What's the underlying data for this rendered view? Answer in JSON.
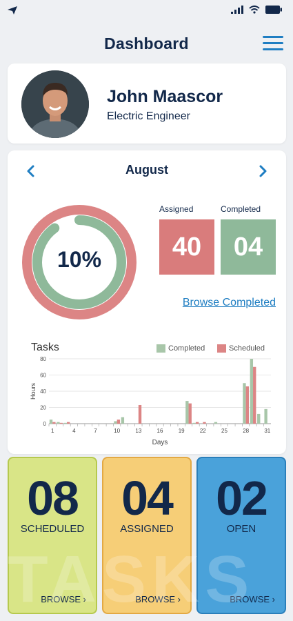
{
  "header": {
    "title": "Dashboard"
  },
  "profile": {
    "name": "John Maascor",
    "role": "Electric Engineer"
  },
  "stats": {
    "month": "August",
    "percent_label": "10%",
    "percent_value": 0.1,
    "assigned_label": "Assigned",
    "assigned_value": "40",
    "completed_label": "Completed",
    "completed_value": "04",
    "browse_completed": "Browse Completed"
  },
  "chart_data": {
    "type": "bar",
    "title": "Tasks",
    "xlabel": "Days",
    "ylabel": "Hours",
    "ylim": [
      0,
      80
    ],
    "yticks": [
      0,
      20,
      40,
      60,
      80
    ],
    "x": [
      1,
      2,
      3,
      4,
      5,
      6,
      7,
      8,
      9,
      10,
      11,
      12,
      13,
      14,
      15,
      16,
      17,
      18,
      19,
      20,
      21,
      22,
      23,
      24,
      25,
      26,
      27,
      28,
      29,
      30,
      31
    ],
    "xtick_labels": [
      "1",
      "4",
      "7",
      "10",
      "13",
      "16",
      "19",
      "22",
      "25",
      "28",
      "31"
    ],
    "series": [
      {
        "name": "Completed",
        "color": "#a8c6a9",
        "values": [
          5,
          2,
          1,
          0,
          0,
          0,
          0,
          0,
          0,
          3,
          8,
          0,
          0,
          0,
          0,
          0,
          0,
          0,
          0,
          28,
          1,
          0,
          0,
          2,
          0,
          0,
          0,
          50,
          80,
          12,
          18
        ]
      },
      {
        "name": "Scheduled",
        "color": "#dc8585",
        "values": [
          2,
          1,
          2,
          0,
          0,
          0,
          0,
          0,
          0,
          5,
          0,
          0,
          23,
          0,
          0,
          0,
          0,
          0,
          0,
          25,
          2,
          2,
          0,
          0,
          0,
          0,
          0,
          46,
          70,
          0,
          0
        ]
      }
    ],
    "grid": true,
    "legend": "top-right"
  },
  "tiles": [
    {
      "number": "08",
      "label": "SCHEDULED",
      "browse": "BROWSE"
    },
    {
      "number": "04",
      "label": "ASSIGNED",
      "browse": "BROWSE"
    },
    {
      "number": "02",
      "label": "OPEN",
      "browse": "BROWSE"
    }
  ],
  "watermark": "TASKS",
  "colors": {
    "accent": "#1f7ec2",
    "navy": "#12284a",
    "red": "#d97c7c",
    "green": "#8fb99a"
  }
}
